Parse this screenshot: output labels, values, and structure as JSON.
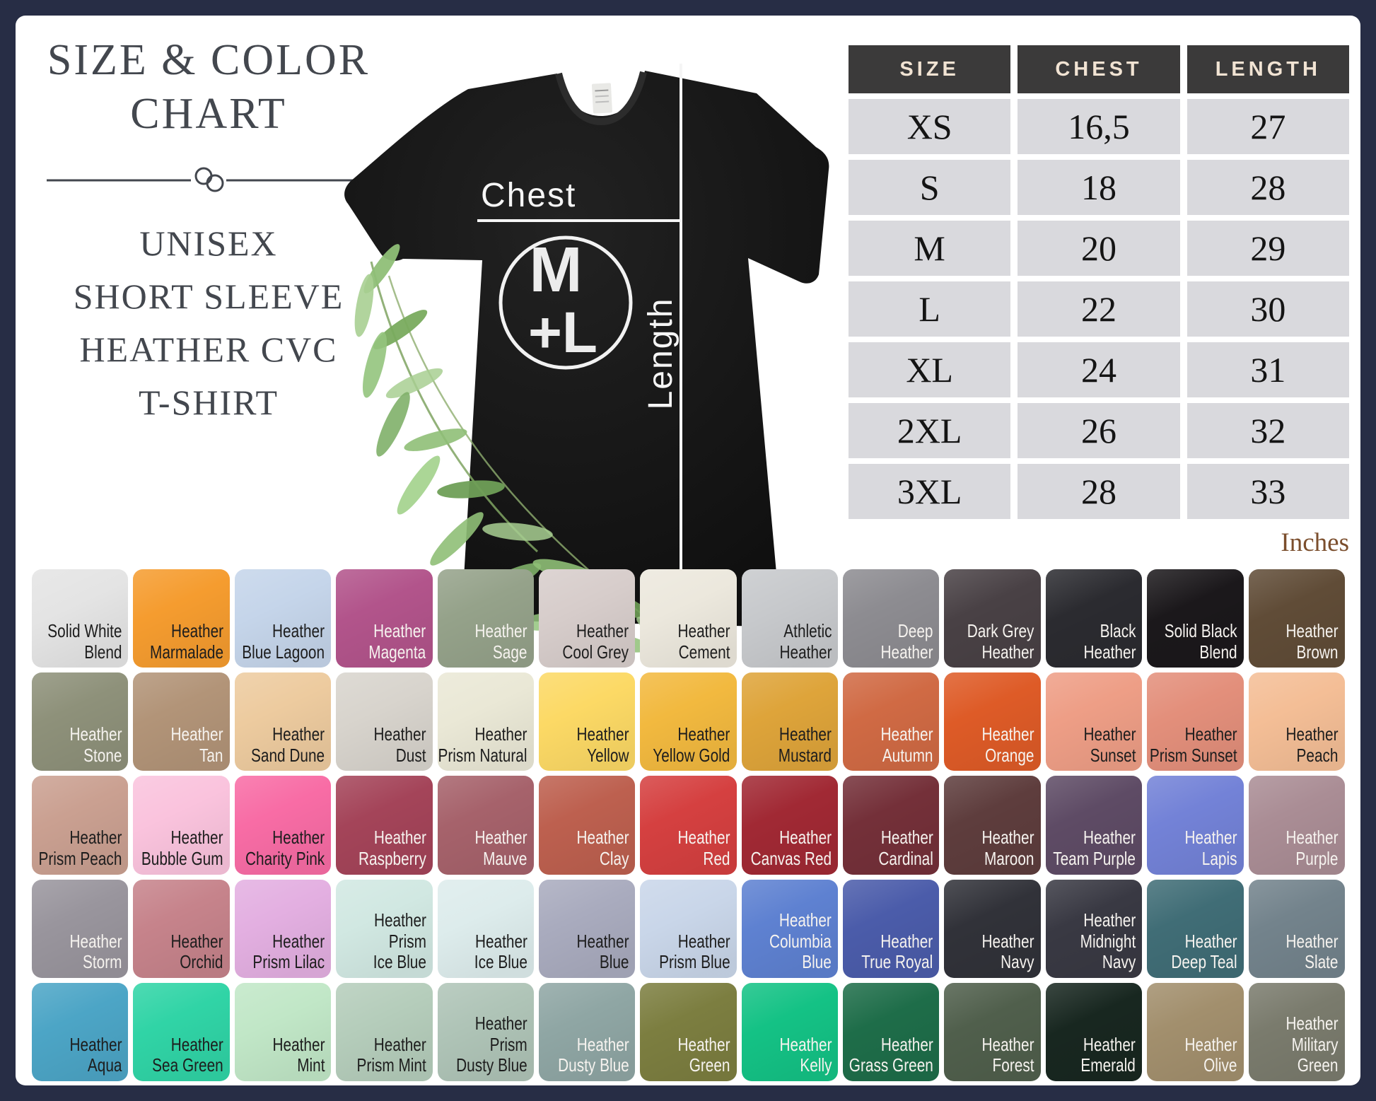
{
  "left_panel": {
    "title_lines": [
      "SIZE & COLOR",
      "CHART"
    ],
    "subtitle_lines": [
      "UNISEX",
      "SHORT SLEEVE",
      "HEATHER CVC",
      "T-SHIRT"
    ]
  },
  "shirt_diagram": {
    "chest_label": "Chest",
    "length_label": "Length",
    "badge_line1": "M",
    "badge_line2": "+L"
  },
  "theme": {
    "border_navy": "#272d45",
    "title_text": "#43474e",
    "table_header_bg": "#3b3a3a",
    "table_header_text": "#f1e3d3",
    "table_cell_bg": "#d9d9dd",
    "table_cell_text": "#141414",
    "units_text": "#7b4e2d",
    "measure_white": "#f5f5f5"
  },
  "chart_data": [
    {
      "type": "table",
      "title": "Size chart",
      "columns": [
        "SIZE",
        "CHEST",
        "LENGTH"
      ],
      "units": "Inches",
      "rows": [
        [
          "XS",
          "16,5",
          "27"
        ],
        [
          "S",
          "18",
          "28"
        ],
        [
          "M",
          "20",
          "29"
        ],
        [
          "L",
          "22",
          "30"
        ],
        [
          "XL",
          "24",
          "31"
        ],
        [
          "2XL",
          "26",
          "32"
        ],
        [
          "3XL",
          "28",
          "33"
        ]
      ]
    },
    {
      "type": "table",
      "title": "Color chart",
      "grid_rows": 5,
      "grid_cols": 13,
      "swatches": [
        {
          "name": "Solid White Blend",
          "lines": [
            "Solid White",
            "Blend"
          ],
          "hex": "#e4e4e4",
          "fg": "dark"
        },
        {
          "name": "Heather Marmalade",
          "lines": [
            "Heather",
            "Marmalade"
          ],
          "hex": "#f59c2f",
          "fg": "dark"
        },
        {
          "name": "Heather Blue Lagoon",
          "lines": [
            "Heather",
            "Blue Lagoon"
          ],
          "hex": "#c5d5ea",
          "fg": "dark"
        },
        {
          "name": "Heather Magenta",
          "lines": [
            "Heather",
            "Magenta"
          ],
          "hex": "#b2548b",
          "fg": "light"
        },
        {
          "name": "Heather Sage",
          "lines": [
            "Heather",
            "Sage"
          ],
          "hex": "#95a28a",
          "fg": "light"
        },
        {
          "name": "Heather Cool Grey",
          "lines": [
            "Heather",
            "Cool Grey"
          ],
          "hex": "#d7cdcb",
          "fg": "dark"
        },
        {
          "name": "Heather Cement",
          "lines": [
            "Heather",
            "Cement"
          ],
          "hex": "#ece8dd",
          "fg": "dark"
        },
        {
          "name": "Athletic Heather",
          "lines": [
            "Athletic",
            "Heather"
          ],
          "hex": "#c7c9cc",
          "fg": "dark"
        },
        {
          "name": "Deep Heather",
          "lines": [
            "Deep",
            "Heather"
          ],
          "hex": "#8d8c91",
          "fg": "light"
        },
        {
          "name": "Dark Grey Heather",
          "lines": [
            "Dark Grey",
            "Heather"
          ],
          "hex": "#494145",
          "fg": "light"
        },
        {
          "name": "Black Heather",
          "lines": [
            "Black",
            "Heather"
          ],
          "hex": "#2b2b30",
          "fg": "light"
        },
        {
          "name": "Solid Black Blend",
          "lines": [
            "Solid Black",
            "Blend"
          ],
          "hex": "#1b181b",
          "fg": "light"
        },
        {
          "name": "Heather Brown",
          "lines": [
            "Heather",
            "Brown"
          ],
          "hex": "#604c37",
          "fg": "light"
        },
        {
          "name": "Heather Stone",
          "lines": [
            "Heather",
            "Stone"
          ],
          "hex": "#8e917a",
          "fg": "light"
        },
        {
          "name": "Heather Tan",
          "lines": [
            "Heather",
            "Tan"
          ],
          "hex": "#b29478",
          "fg": "light"
        },
        {
          "name": "Heather Sand Dune",
          "lines": [
            "Heather",
            "Sand Dune"
          ],
          "hex": "#edcb9f",
          "fg": "dark"
        },
        {
          "name": "Heather Dust",
          "lines": [
            "Heather",
            "Dust"
          ],
          "hex": "#d8d4cd",
          "fg": "dark"
        },
        {
          "name": "Heather Prism Natural",
          "lines": [
            "Heather",
            "Prism Natural"
          ],
          "hex": "#eae8d6",
          "fg": "dark"
        },
        {
          "name": "Heather Yellow",
          "lines": [
            "Heather",
            "Yellow"
          ],
          "hex": "#fcd965",
          "fg": "dark"
        },
        {
          "name": "Heather Yellow Gold",
          "lines": [
            "Heather",
            "Yellow Gold"
          ],
          "hex": "#f2b93f",
          "fg": "dark"
        },
        {
          "name": "Heather Mustard",
          "lines": [
            "Heather",
            "Mustard"
          ],
          "hex": "#dea43a",
          "fg": "dark"
        },
        {
          "name": "Heather Autumn",
          "lines": [
            "Heather",
            "Autumn"
          ],
          "hex": "#d06a44",
          "fg": "light"
        },
        {
          "name": "Heather Orange",
          "lines": [
            "Heather",
            "Orange"
          ],
          "hex": "#de5b27",
          "fg": "light"
        },
        {
          "name": "Heather Sunset",
          "lines": [
            "Heather",
            "Sunset"
          ],
          "hex": "#ee9e86",
          "fg": "dark"
        },
        {
          "name": "Heather Prism Sunset",
          "lines": [
            "Heather",
            "Prism Sunset"
          ],
          "hex": "#e38f7b",
          "fg": "dark"
        },
        {
          "name": "Heather Peach",
          "lines": [
            "Heather",
            "Peach"
          ],
          "hex": "#f4be96",
          "fg": "dark"
        },
        {
          "name": "Heather Prism Peach",
          "lines": [
            "Heather",
            "Prism Peach"
          ],
          "hex": "#caa091",
          "fg": "dark"
        },
        {
          "name": "Heather Bubble Gum",
          "lines": [
            "Heather",
            "Bubble Gum"
          ],
          "hex": "#fac3dd",
          "fg": "dark"
        },
        {
          "name": "Heather Charity Pink",
          "lines": [
            "Heather",
            "Charity Pink"
          ],
          "hex": "#f86ca5",
          "fg": "dark"
        },
        {
          "name": "Heather Raspberry",
          "lines": [
            "Heather",
            "Raspberry"
          ],
          "hex": "#a44459",
          "fg": "light"
        },
        {
          "name": "Heather Mauve",
          "lines": [
            "Heather",
            "Mauve"
          ],
          "hex": "#a6626b",
          "fg": "light"
        },
        {
          "name": "Heather Clay",
          "lines": [
            "Heather",
            "Clay"
          ],
          "hex": "#bd604f",
          "fg": "light"
        },
        {
          "name": "Heather Red",
          "lines": [
            "Heather",
            "Red"
          ],
          "hex": "#d54040",
          "fg": "light"
        },
        {
          "name": "Heather Canvas Red",
          "lines": [
            "Heather",
            "Canvas Red"
          ],
          "hex": "#a12934",
          "fg": "light"
        },
        {
          "name": "Heather Cardinal",
          "lines": [
            "Heather",
            "Cardinal"
          ],
          "hex": "#743039",
          "fg": "light"
        },
        {
          "name": "Heather Maroon",
          "lines": [
            "Heather",
            "Maroon"
          ],
          "hex": "#5e3d3d",
          "fg": "light"
        },
        {
          "name": "Heather Team Purple",
          "lines": [
            "Heather",
            "Team Purple"
          ],
          "hex": "#5e4b65",
          "fg": "light"
        },
        {
          "name": "Heather Lapis",
          "lines": [
            "Heather",
            "Lapis"
          ],
          "hex": "#7382d7",
          "fg": "light"
        },
        {
          "name": "Heather Purple",
          "lines": [
            "Heather",
            "Purple"
          ],
          "hex": "#aa8d95",
          "fg": "light"
        },
        {
          "name": "Heather Storm",
          "lines": [
            "Heather",
            "Storm"
          ],
          "hex": "#99959d",
          "fg": "light"
        },
        {
          "name": "Heather Orchid",
          "lines": [
            "Heather",
            "Orchid"
          ],
          "hex": "#c6838b",
          "fg": "dark"
        },
        {
          "name": "Heather Prism Lilac",
          "lines": [
            "Heather",
            "Prism Lilac"
          ],
          "hex": "#e3afe1",
          "fg": "dark"
        },
        {
          "name": "Heather Prism Ice Blue",
          "lines": [
            "Heather",
            "Prism",
            "Ice Blue"
          ],
          "hex": "#d1e8e2",
          "fg": "dark"
        },
        {
          "name": "Heather Ice Blue",
          "lines": [
            "Heather",
            "Ice Blue"
          ],
          "hex": "#ddecec",
          "fg": "dark"
        },
        {
          "name": "Heather Blue",
          "lines": [
            "Heather",
            "Blue"
          ],
          "hex": "#a9abbe",
          "fg": "dark"
        },
        {
          "name": "Heather Prism Blue",
          "lines": [
            "Heather",
            "Prism Blue"
          ],
          "hex": "#c9d6e9",
          "fg": "dark"
        },
        {
          "name": "Heather Columbia Blue",
          "lines": [
            "Heather",
            "Columbia",
            "Blue"
          ],
          "hex": "#5e81d1",
          "fg": "light"
        },
        {
          "name": "Heather True Royal",
          "lines": [
            "Heather",
            "True Royal"
          ],
          "hex": "#4b5caa",
          "fg": "light"
        },
        {
          "name": "Heather Navy",
          "lines": [
            "Heather",
            "Navy"
          ],
          "hex": "#313239",
          "fg": "light"
        },
        {
          "name": "Heather Midnight Navy",
          "lines": [
            "Heather",
            "Midnight",
            "Navy"
          ],
          "hex": "#393943",
          "fg": "light"
        },
        {
          "name": "Heather Deep Teal",
          "lines": [
            "Heather",
            "Deep Teal"
          ],
          "hex": "#406d76",
          "fg": "light"
        },
        {
          "name": "Heather Slate",
          "lines": [
            "Heather",
            "Slate"
          ],
          "hex": "#73838c",
          "fg": "light"
        },
        {
          "name": "Heather Aqua",
          "lines": [
            "Heather",
            "Aqua"
          ],
          "hex": "#4ca5c6",
          "fg": "dark"
        },
        {
          "name": "Heather Sea Green",
          "lines": [
            "Heather",
            "Sea Green"
          ],
          "hex": "#30d4a6",
          "fg": "dark"
        },
        {
          "name": "Heather Mint",
          "lines": [
            "Heather",
            "Mint"
          ],
          "hex": "#c1e7c7",
          "fg": "dark"
        },
        {
          "name": "Heather Prism Mint",
          "lines": [
            "Heather",
            "Prism Mint"
          ],
          "hex": "#b5cdbb",
          "fg": "dark"
        },
        {
          "name": "Heather Prism Dusty Blue",
          "lines": [
            "Heather",
            "Prism",
            "Dusty Blue"
          ],
          "hex": "#afc4b7",
          "fg": "dark"
        },
        {
          "name": "Heather Dusty Blue",
          "lines": [
            "Heather",
            "Dusty Blue"
          ],
          "hex": "#8fa6a4",
          "fg": "light"
        },
        {
          "name": "Heather Green",
          "lines": [
            "Heather",
            "Green"
          ],
          "hex": "#7c7e40",
          "fg": "light"
        },
        {
          "name": "Heather Kelly",
          "lines": [
            "Heather",
            "Kelly"
          ],
          "hex": "#14c285",
          "fg": "light"
        },
        {
          "name": "Heather Grass Green",
          "lines": [
            "Heather",
            "Grass Green"
          ],
          "hex": "#1e6d49",
          "fg": "light"
        },
        {
          "name": "Heather Forest",
          "lines": [
            "Heather",
            "Forest"
          ],
          "hex": "#505f4c",
          "fg": "light"
        },
        {
          "name": "Heather Emerald",
          "lines": [
            "Heather",
            "Emerald"
          ],
          "hex": "#182720",
          "fg": "light"
        },
        {
          "name": "Heather Olive",
          "lines": [
            "Heather",
            "Olive"
          ],
          "hex": "#a28f6d",
          "fg": "light"
        },
        {
          "name": "Heather Military Green",
          "lines": [
            "Heather",
            "Military",
            "Green"
          ],
          "hex": "#7a7b6d",
          "fg": "light"
        }
      ]
    }
  ]
}
